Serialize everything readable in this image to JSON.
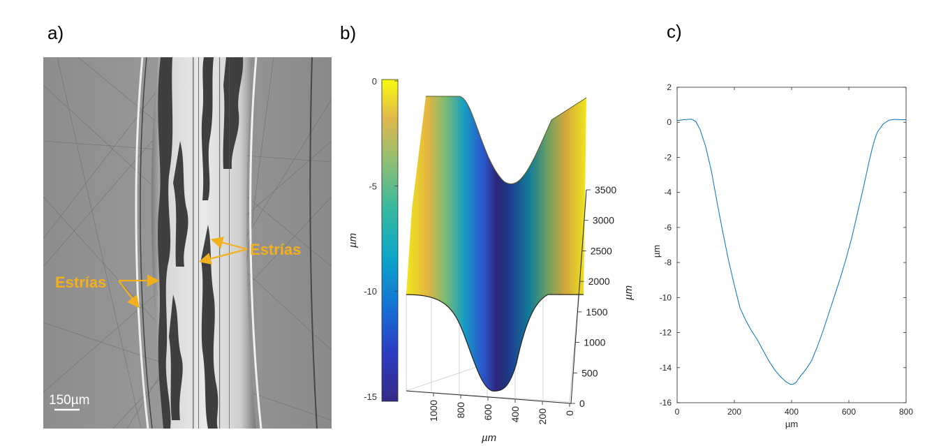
{
  "panels": {
    "a": {
      "label": "a)"
    },
    "b": {
      "label": "b)"
    },
    "c": {
      "label": "c)"
    }
  },
  "micrograph": {
    "annotations": [
      "Estrías",
      "Estrías"
    ],
    "scale_bar": "150µm",
    "annotation_color": "#f2b01e"
  },
  "colorbar": {
    "ticks": [
      "0",
      "-5",
      "-10",
      "-15"
    ],
    "label": "µm"
  },
  "surface3d": {
    "y_ticks": [
      "3500",
      "3000",
      "2500",
      "2000",
      "1500",
      "1000",
      "500",
      "0"
    ],
    "y_label": "µm",
    "x_ticks": [
      "1000",
      "800",
      "600",
      "400",
      "200",
      "0"
    ],
    "x_label": "µm"
  },
  "chart_data": {
    "type": "line",
    "title": "",
    "xlabel": "µm",
    "ylabel": "µm",
    "xlim": [
      0,
      800
    ],
    "ylim": [
      -16,
      2
    ],
    "x_ticks": [
      0,
      200,
      400,
      600,
      800
    ],
    "y_ticks": [
      2,
      0,
      -2,
      -4,
      -6,
      -8,
      -10,
      -12,
      -14,
      -16
    ],
    "series": [
      {
        "color": "#0072bd",
        "x": [
          0,
          25,
          50,
          65,
          80,
          100,
          120,
          140,
          160,
          180,
          200,
          220,
          240,
          260,
          280,
          300,
          320,
          340,
          360,
          380,
          395,
          405,
          415,
          430,
          450,
          470,
          490,
          510,
          530,
          550,
          570,
          590,
          610,
          630,
          650,
          670,
          680,
          690,
          700,
          720,
          740,
          760,
          780,
          800
        ],
        "y": [
          0.1,
          0.15,
          0.18,
          0.05,
          -0.4,
          -1.4,
          -2.8,
          -4.6,
          -6.3,
          -7.9,
          -9.3,
          -10.6,
          -11.3,
          -11.9,
          -12.4,
          -13.0,
          -13.6,
          -14.1,
          -14.5,
          -14.8,
          -14.95,
          -14.95,
          -14.85,
          -14.5,
          -14.1,
          -13.6,
          -12.8,
          -11.9,
          -10.9,
          -9.9,
          -8.9,
          -7.8,
          -6.6,
          -5.2,
          -3.8,
          -2.3,
          -1.6,
          -1.0,
          -0.55,
          -0.1,
          0.12,
          0.17,
          0.15,
          0.15
        ]
      }
    ]
  }
}
